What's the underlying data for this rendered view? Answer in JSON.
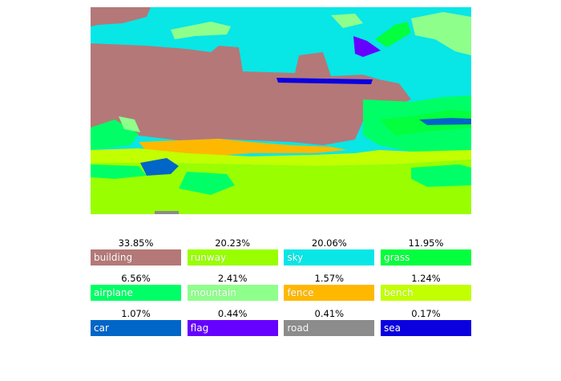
{
  "legend": {
    "items": [
      {
        "label": "building",
        "percent": "33.85%",
        "color": "#b47878"
      },
      {
        "label": "runway",
        "percent": "20.23%",
        "color": "#99ff00"
      },
      {
        "label": "sky",
        "percent": "20.06%",
        "color": "#08e6e6"
      },
      {
        "label": "grass",
        "percent": "11.95%",
        "color": "#03ff3d"
      },
      {
        "label": "airplane",
        "percent": "6.56%",
        "color": "#00ff66"
      },
      {
        "label": "mountain",
        "percent": "2.41%",
        "color": "#8fff8c"
      },
      {
        "label": "fence",
        "percent": "1.57%",
        "color": "#ffb800"
      },
      {
        "label": "bench",
        "percent": "1.24%",
        "color": "#c2ff00"
      },
      {
        "label": "car",
        "percent": "1.07%",
        "color": "#0066c8"
      },
      {
        "label": "flag",
        "percent": "0.44%",
        "color": "#6600ff"
      },
      {
        "label": "road",
        "percent": "0.41%",
        "color": "#8c8c8c"
      },
      {
        "label": "sea",
        "percent": "0.17%",
        "color": "#0a00e0"
      }
    ]
  }
}
